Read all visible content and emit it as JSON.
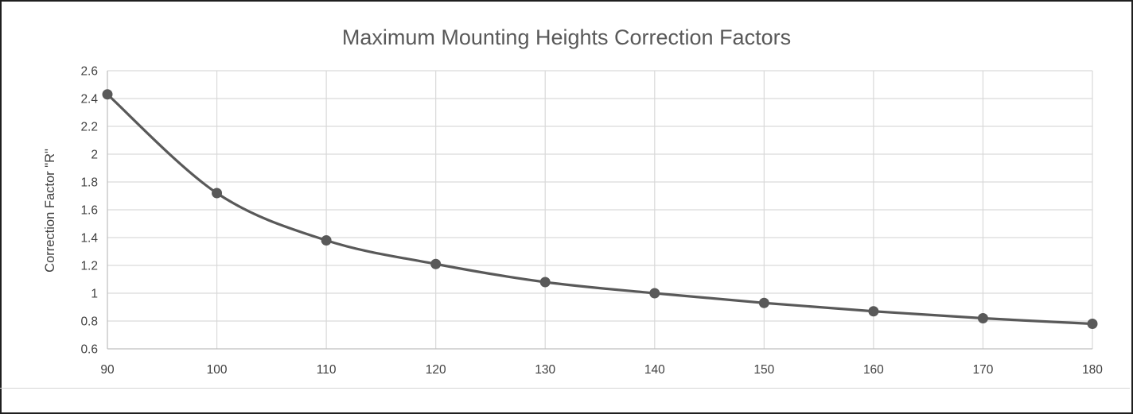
{
  "chart_data": {
    "type": "line",
    "title": "Maximum Mounting Heights Correction Factors",
    "xlabel": "",
    "ylabel": "Correction Factor \"R\"",
    "x": [
      90,
      100,
      110,
      120,
      130,
      140,
      150,
      160,
      170,
      180
    ],
    "series": [
      {
        "values": [
          2.43,
          1.72,
          1.38,
          1.21,
          1.08,
          1.0,
          0.93,
          0.87,
          0.82,
          0.78
        ]
      }
    ],
    "xlim": [
      90,
      180
    ],
    "ylim": [
      0.6,
      2.6
    ],
    "x_ticks": [
      "90",
      "100",
      "110",
      "120",
      "130",
      "140",
      "150",
      "160",
      "170",
      "180"
    ],
    "y_ticks": [
      "0.6",
      "0.8",
      "1",
      "1.2",
      "1.4",
      "1.6",
      "1.8",
      "2",
      "2.2",
      "2.4",
      "2.6"
    ],
    "grid": true,
    "smooth": true,
    "markers": true,
    "line_color": "#595959",
    "grid_color": "#d9d9d9"
  }
}
